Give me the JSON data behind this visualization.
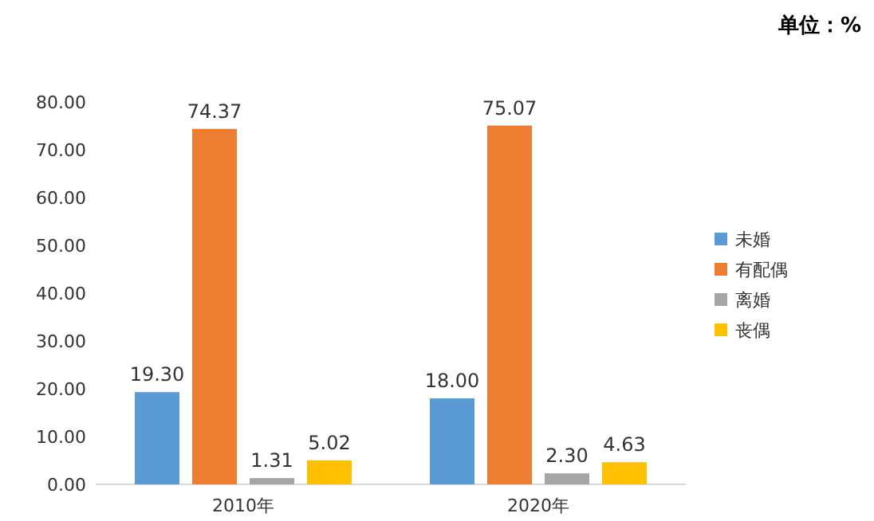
{
  "chart_data": {
    "type": "bar",
    "annotations": [
      "单位：%"
    ],
    "categories": [
      "2010年",
      "2020年"
    ],
    "series": [
      {
        "name": "未婚",
        "color": "#5b9bd5",
        "values": [
          19.3,
          18.0
        ],
        "value_labels": [
          "19.30",
          "18.00"
        ]
      },
      {
        "name": "有配偶",
        "color": "#ed7d31",
        "values": [
          74.37,
          75.07
        ],
        "value_labels": [
          "74.37",
          "75.07"
        ]
      },
      {
        "name": "离婚",
        "color": "#a5a5a5",
        "values": [
          1.31,
          2.3
        ],
        "value_labels": [
          "1.31",
          "2.30"
        ]
      },
      {
        "name": "丧偶",
        "color": "#ffc000",
        "values": [
          5.02,
          4.63
        ],
        "value_labels": [
          "5.02",
          "4.63"
        ]
      }
    ],
    "ylim": [
      0,
      80
    ],
    "yticks": [
      {
        "value": 0,
        "label": "0.00"
      },
      {
        "value": 10,
        "label": "10.00"
      },
      {
        "value": 20,
        "label": "20.00"
      },
      {
        "value": 30,
        "label": "30.00"
      },
      {
        "value": 40,
        "label": "40.00"
      },
      {
        "value": 50,
        "label": "50.00"
      },
      {
        "value": 60,
        "label": "60.00"
      },
      {
        "value": 70,
        "label": "70.00"
      },
      {
        "value": 80,
        "label": "80.00"
      }
    ],
    "legend": "right"
  }
}
